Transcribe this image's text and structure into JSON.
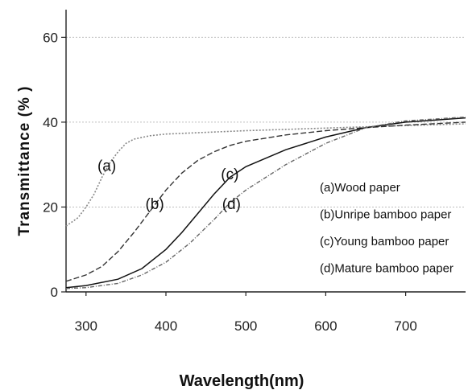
{
  "chart_data": {
    "type": "line",
    "xlabel": "Wavelength(nm)",
    "ylabel": "Transmittance (% )",
    "xlim": [
      275,
      775
    ],
    "ylim": [
      0,
      65
    ],
    "xticks": [
      300,
      400,
      500,
      600,
      700
    ],
    "yticks": [
      0,
      20,
      40,
      60
    ],
    "grid": true,
    "legend_position": "right-bottom",
    "series": [
      {
        "name": "(a)Wood paper",
        "label": "(a)",
        "color": "#888888",
        "points": [
          [
            275,
            15.5
          ],
          [
            290,
            17.5
          ],
          [
            300,
            20
          ],
          [
            310,
            23
          ],
          [
            320,
            27
          ],
          [
            330,
            30.5
          ],
          [
            340,
            33
          ],
          [
            350,
            35
          ],
          [
            360,
            36
          ],
          [
            380,
            36.8
          ],
          [
            400,
            37.2
          ],
          [
            450,
            37.6
          ],
          [
            500,
            38
          ],
          [
            550,
            38.3
          ],
          [
            600,
            38.6
          ],
          [
            650,
            38.9
          ],
          [
            700,
            39.2
          ],
          [
            775,
            39.6
          ]
        ]
      },
      {
        "name": "(b)Unripe bamboo paper",
        "label": "(b)",
        "color": "#333333",
        "points": [
          [
            275,
            2.5
          ],
          [
            300,
            4
          ],
          [
            320,
            6
          ],
          [
            340,
            9.5
          ],
          [
            360,
            14
          ],
          [
            380,
            19
          ],
          [
            400,
            24
          ],
          [
            420,
            28
          ],
          [
            440,
            31
          ],
          [
            460,
            33
          ],
          [
            480,
            34.5
          ],
          [
            500,
            35.5
          ],
          [
            550,
            37
          ],
          [
            600,
            38
          ],
          [
            650,
            38.7
          ],
          [
            700,
            39.3
          ],
          [
            775,
            40
          ]
        ]
      },
      {
        "name": "(c)Young bamboo paper",
        "label": "(c)",
        "color": "#111111",
        "points": [
          [
            275,
            1
          ],
          [
            300,
            1.5
          ],
          [
            340,
            3
          ],
          [
            370,
            5.5
          ],
          [
            400,
            10
          ],
          [
            420,
            14
          ],
          [
            440,
            18.5
          ],
          [
            460,
            23
          ],
          [
            480,
            27
          ],
          [
            500,
            29.5
          ],
          [
            550,
            33.5
          ],
          [
            600,
            36.5
          ],
          [
            650,
            38.7
          ],
          [
            700,
            40
          ],
          [
            775,
            41
          ]
        ]
      },
      {
        "name": "(d)Mature bamboo paper",
        "label": "(d)",
        "color": "#666666",
        "points": [
          [
            275,
            0.8
          ],
          [
            300,
            1
          ],
          [
            340,
            2
          ],
          [
            370,
            4
          ],
          [
            400,
            7
          ],
          [
            430,
            11.5
          ],
          [
            460,
            17
          ],
          [
            480,
            21
          ],
          [
            500,
            24
          ],
          [
            550,
            30
          ],
          [
            600,
            35
          ],
          [
            650,
            38.7
          ],
          [
            700,
            40.3
          ],
          [
            775,
            41.2
          ]
        ]
      }
    ],
    "curve_labels": [
      {
        "text": "(a)",
        "x": 326,
        "y": 28.5
      },
      {
        "text": "(b)",
        "x": 386,
        "y": 19.5
      },
      {
        "text": "(c)",
        "x": 480,
        "y": 26.5
      },
      {
        "text": "(d)",
        "x": 482,
        "y": 19.5
      }
    ]
  }
}
